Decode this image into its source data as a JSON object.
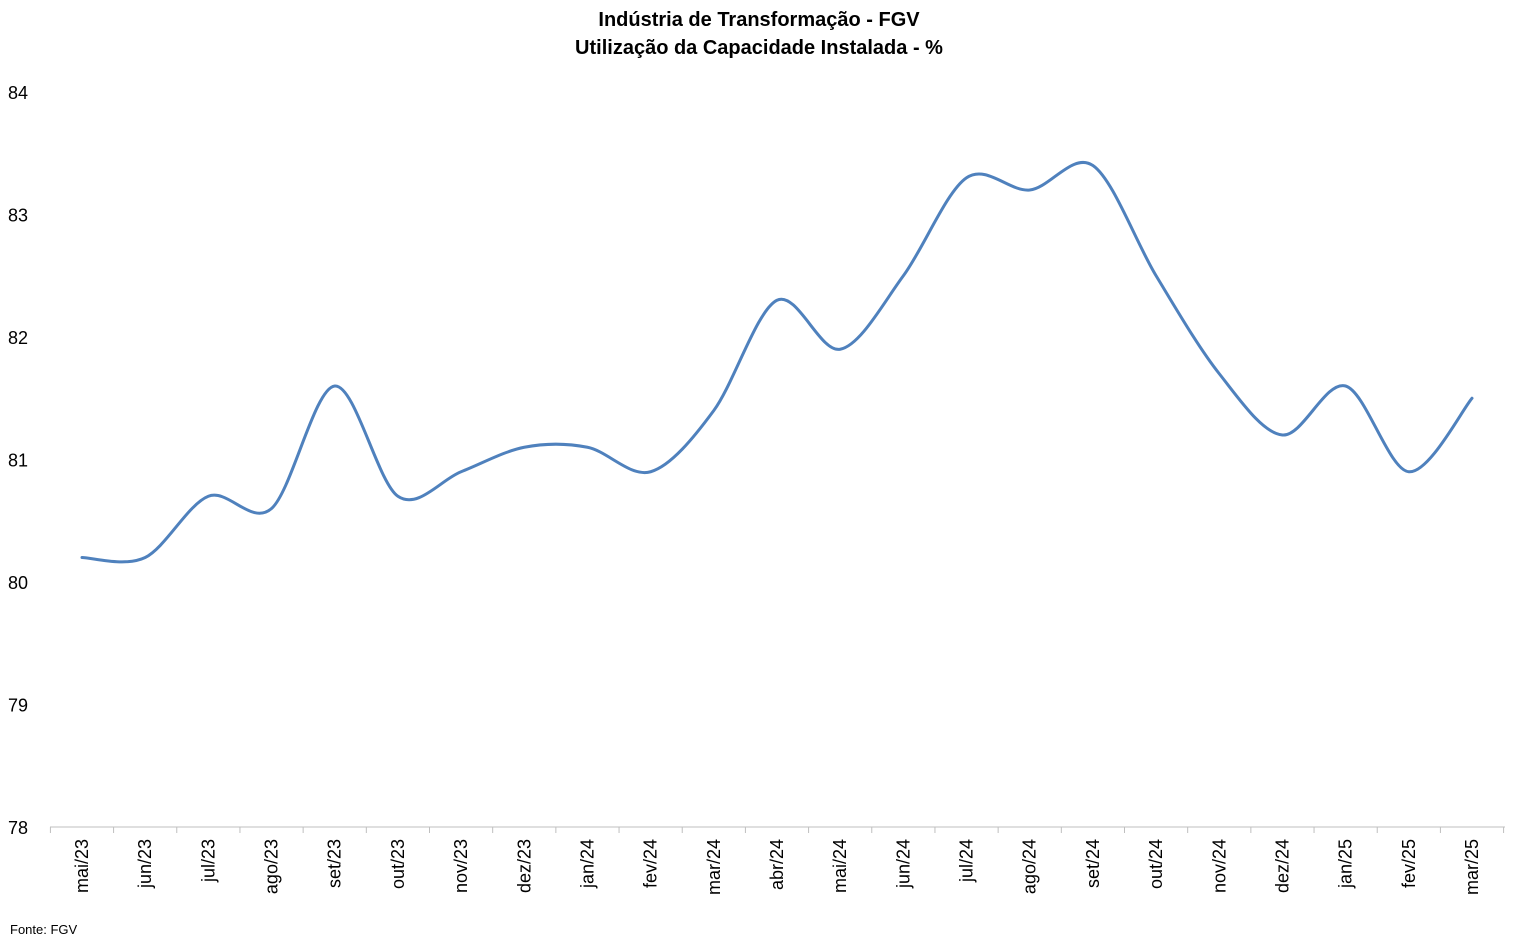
{
  "chart_data": {
    "type": "line",
    "title": "Indústria de Transformação - FGV",
    "subtitle": "Utilização da Capacidade Instalada - %",
    "xlabel": "",
    "ylabel": "",
    "ylim": [
      78,
      84
    ],
    "yticks": [
      "78",
      "79",
      "80",
      "81",
      "82",
      "83",
      "84"
    ],
    "categories": [
      "mai/23",
      "jun/23",
      "jul/23",
      "ago/23",
      "set/23",
      "out/23",
      "nov/23",
      "dez/23",
      "jan/24",
      "fev/24",
      "mar/24",
      "abr/24",
      "mai/24",
      "jun/24",
      "jul/24",
      "ago/24",
      "set/24",
      "out/24",
      "nov/24",
      "dez/24",
      "jan/25",
      "fev/25",
      "mar/25"
    ],
    "series": [
      {
        "values": [
          80.2,
          80.2,
          80.7,
          80.6,
          81.6,
          80.7,
          80.9,
          81.1,
          81.1,
          80.9,
          81.4,
          82.3,
          81.9,
          82.5,
          83.3,
          83.2,
          83.4,
          82.5,
          81.7,
          81.2,
          81.6,
          80.9,
          81.5
        ],
        "color": "#4f81bd"
      }
    ],
    "grid": false,
    "legend": "none",
    "source": "Fonte: FGV"
  }
}
